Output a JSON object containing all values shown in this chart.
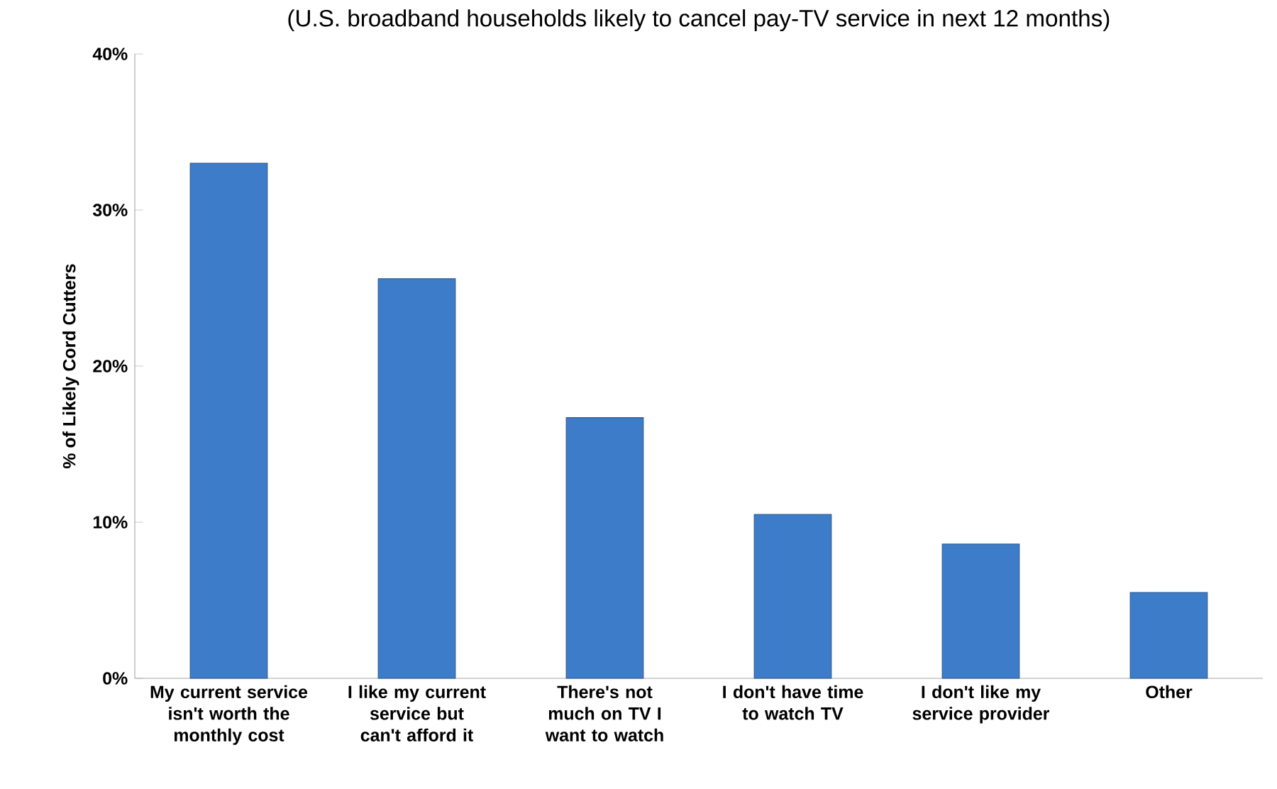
{
  "chart_data": {
    "type": "bar",
    "subtitle": "(U.S. broadband households likely to cancel pay-TV service in next 12 months)",
    "ylabel": "% of Likely Cord Cutters",
    "categories": [
      "My current service isn't worth the monthly cost",
      "I like my current service but can't afford it",
      "There's not much on TV I want to watch",
      "I don't have time to watch TV",
      "I don't like my service provider",
      "Other"
    ],
    "values": [
      33.0,
      25.6,
      16.7,
      10.5,
      8.6,
      5.5
    ],
    "color": "#3d7cc9",
    "ylim": [
      0,
      40
    ],
    "yticks": [
      {
        "value": 0,
        "label": "0%"
      },
      {
        "value": 10,
        "label": "10%"
      },
      {
        "value": 20,
        "label": "20%"
      },
      {
        "value": 30,
        "label": "30%"
      },
      {
        "value": 40,
        "label": "40%"
      }
    ],
    "grid": false
  }
}
